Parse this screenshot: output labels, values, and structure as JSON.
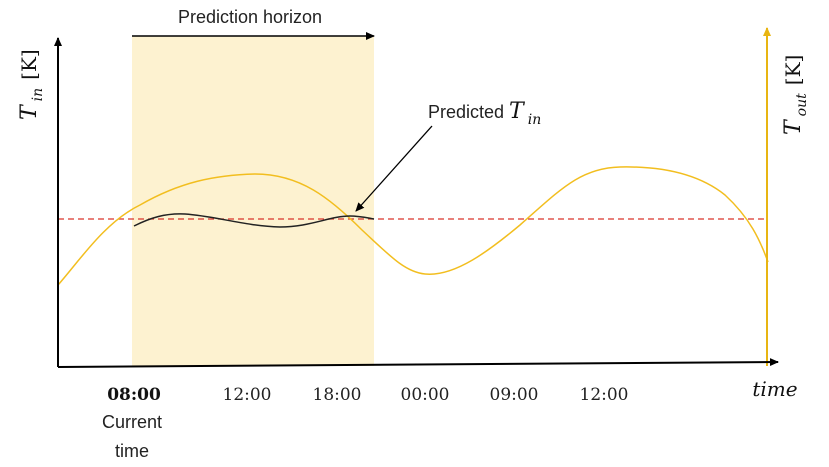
{
  "labels": {
    "prediction_horizon": "Prediction horizon",
    "predicted_prefix": "Predicted ",
    "current_time_line1": "Current",
    "current_time_line2": "time",
    "time_axis": "time"
  },
  "y_left_axis": {
    "var": "T",
    "sub": "in",
    "unit": "[K]"
  },
  "y_right_axis": {
    "var": "T",
    "sub": "out",
    "unit": "[K]"
  },
  "predicted_var": {
    "var": "T",
    "sub": "in"
  },
  "ticks": [
    "08:00",
    "12:00",
    "18:00",
    "00:00",
    "09:00",
    "12:00"
  ],
  "colors": {
    "outdoor_curve": "#f2be1f",
    "horizon_fill": "#fdf2d0",
    "setpoint": "#d9342b",
    "predicted": "#222222",
    "right_axis": "#e8b512"
  }
}
